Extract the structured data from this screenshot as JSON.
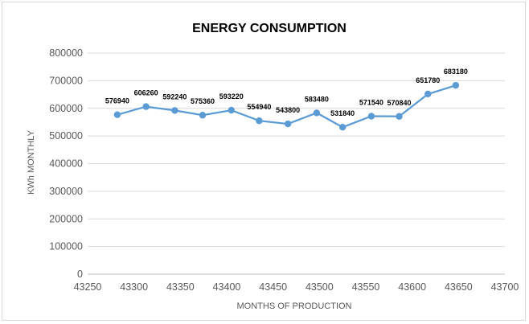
{
  "chart_data": {
    "type": "scatter",
    "title": "ENERGY CONSUMPTION",
    "xlabel": "MONTHS OF PRODUCTION",
    "ylabel": "KWh MONTHLY",
    "xlim": [
      43250,
      43700
    ],
    "ylim": [
      0,
      800000
    ],
    "x_ticks": [
      "43250",
      "43300",
      "43350",
      "43400",
      "43450",
      "43500",
      "43550",
      "43600",
      "43650",
      "43700"
    ],
    "y_ticks": [
      "0",
      "100000",
      "200000",
      "300000",
      "400000",
      "500000",
      "600000",
      "700000",
      "800000"
    ],
    "grid": "horizontal",
    "legend": "none",
    "line_color": "#5b9bd5",
    "series": [
      {
        "x": [
          43282,
          43313,
          43344,
          43374,
          43405,
          43435,
          43466,
          43497,
          43525,
          43556,
          43586,
          43617,
          43647
        ],
        "y": [
          576940,
          606260,
          592240,
          575360,
          593220,
          554940,
          543800,
          583480,
          531840,
          571540,
          570840,
          651780,
          683180
        ],
        "labels": [
          "576940",
          "606260",
          "592240",
          "575360",
          "593220",
          "554940",
          "543800",
          "583480",
          "531840",
          "571540",
          "570840",
          "651780",
          "683180"
        ]
      }
    ]
  }
}
